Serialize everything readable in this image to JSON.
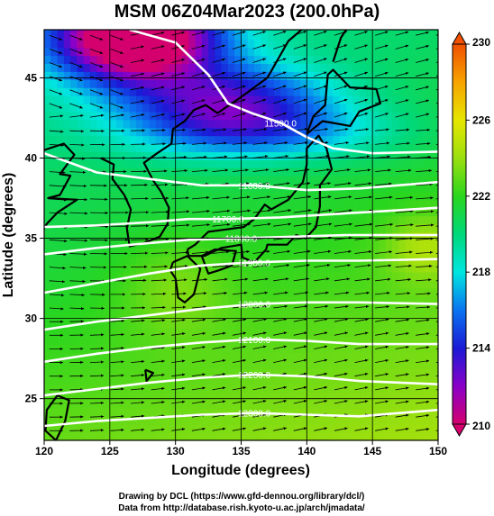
{
  "title": "MSM 06Z04Mar2023 (200.0hPa)",
  "credits": [
    "Drawing by DCL (https://www.gfd-dennou.org/library/dcl/)",
    "Data from http://database.rish.kyoto-u.ac.jp/arch/jmadata/"
  ],
  "chart_data": {
    "type": "heatmap",
    "title": "MSM 06Z04Mar2023 (200.0hPa)",
    "xlabel": "Longitude (degrees)",
    "ylabel": "Latitude  (degrees)",
    "xlim": [
      120,
      150
    ],
    "ylim": [
      22.4,
      48
    ],
    "x_ticks": [
      120,
      125,
      130,
      135,
      140,
      145,
      150
    ],
    "y_ticks": [
      25,
      30,
      35,
      40,
      45
    ],
    "colorbar": {
      "min": 210,
      "max": 230,
      "ticks": [
        210,
        214,
        218,
        222,
        226,
        230
      ],
      "extend": "both",
      "colors": [
        {
          "value": 210,
          "color": "#d4006e"
        },
        {
          "value": 212,
          "color": "#8a00c8"
        },
        {
          "value": 214,
          "color": "#1a1ad6"
        },
        {
          "value": 216,
          "color": "#0a74f0"
        },
        {
          "value": 218,
          "color": "#00e6e0"
        },
        {
          "value": 220,
          "color": "#00d87a"
        },
        {
          "value": 222,
          "color": "#2ad61e"
        },
        {
          "value": 224,
          "color": "#9bdf0f"
        },
        {
          "value": 226,
          "color": "#e6e600"
        },
        {
          "value": 228,
          "color": "#f7a300"
        },
        {
          "value": 230,
          "color": "#f05000"
        }
      ]
    },
    "contours": [
      {
        "label": "11500.0",
        "points": [
          [
            126.5,
            48
          ],
          [
            130,
            47.2
          ],
          [
            132.5,
            45.2
          ],
          [
            134,
            43.4
          ],
          [
            135.8,
            42.8
          ],
          [
            138,
            42.2
          ],
          [
            140,
            41.3
          ],
          [
            142,
            40.6
          ],
          [
            145,
            40.3
          ],
          [
            150,
            40.4
          ]
        ]
      },
      {
        "label": "11600.0",
        "points": [
          [
            120,
            40.3
          ],
          [
            124,
            39.1
          ],
          [
            128,
            38.7
          ],
          [
            132,
            38.3
          ],
          [
            136,
            38.3
          ],
          [
            140,
            38.0
          ],
          [
            144,
            38.1
          ],
          [
            150,
            38.5
          ]
        ]
      },
      {
        "label": "11700.0",
        "points": [
          [
            120,
            35.7
          ],
          [
            124,
            35.8
          ],
          [
            128,
            36.0
          ],
          [
            131,
            36.2
          ],
          [
            134,
            36.2
          ],
          [
            138,
            36.3
          ],
          [
            142,
            36.5
          ],
          [
            146,
            36.7
          ],
          [
            150,
            36.9
          ]
        ]
      },
      {
        "label": "11800.0",
        "points": [
          [
            120,
            34.0
          ],
          [
            124,
            34.4
          ],
          [
            128,
            34.7
          ],
          [
            131,
            34.9
          ],
          [
            135,
            35.0
          ],
          [
            139,
            35.1
          ],
          [
            143,
            35.2
          ],
          [
            147,
            35.2
          ],
          [
            150,
            35.2
          ]
        ]
      },
      {
        "label": "11900.0",
        "points": [
          [
            120,
            31.6
          ],
          [
            124,
            32.2
          ],
          [
            128,
            32.8
          ],
          [
            132,
            33.3
          ],
          [
            136,
            33.5
          ],
          [
            140,
            33.6
          ],
          [
            144,
            33.6
          ],
          [
            150,
            33.7
          ]
        ]
      },
      {
        "label": "12000.0",
        "points": [
          [
            120,
            29.3
          ],
          [
            124,
            29.8
          ],
          [
            128,
            30.2
          ],
          [
            132,
            30.6
          ],
          [
            136,
            30.9
          ],
          [
            140,
            31.0
          ],
          [
            144,
            31.0
          ],
          [
            150,
            30.9
          ]
        ]
      },
      {
        "label": "12100.0",
        "points": [
          [
            120,
            27.3
          ],
          [
            124,
            27.8
          ],
          [
            128,
            28.2
          ],
          [
            132,
            28.5
          ],
          [
            136,
            28.7
          ],
          [
            140,
            28.6
          ],
          [
            144,
            28.4
          ],
          [
            150,
            28.4
          ]
        ]
      },
      {
        "label": "12200.0",
        "points": [
          [
            120,
            25.2
          ],
          [
            124,
            25.6
          ],
          [
            128,
            26.0
          ],
          [
            132,
            26.3
          ],
          [
            136,
            26.5
          ],
          [
            140,
            26.4
          ],
          [
            144,
            26.1
          ],
          [
            150,
            25.9
          ]
        ]
      },
      {
        "label": "12300.0",
        "points": [
          [
            120,
            23.3
          ],
          [
            124,
            23.6
          ],
          [
            128,
            23.8
          ],
          [
            132,
            24.0
          ],
          [
            136,
            24.1
          ],
          [
            140,
            24.0
          ],
          [
            144,
            23.9
          ],
          [
            150,
            24.3
          ]
        ]
      }
    ],
    "wind": "eastward to east-northeastward flow over the whole domain, strongest along about 33-38N",
    "grid": true
  }
}
